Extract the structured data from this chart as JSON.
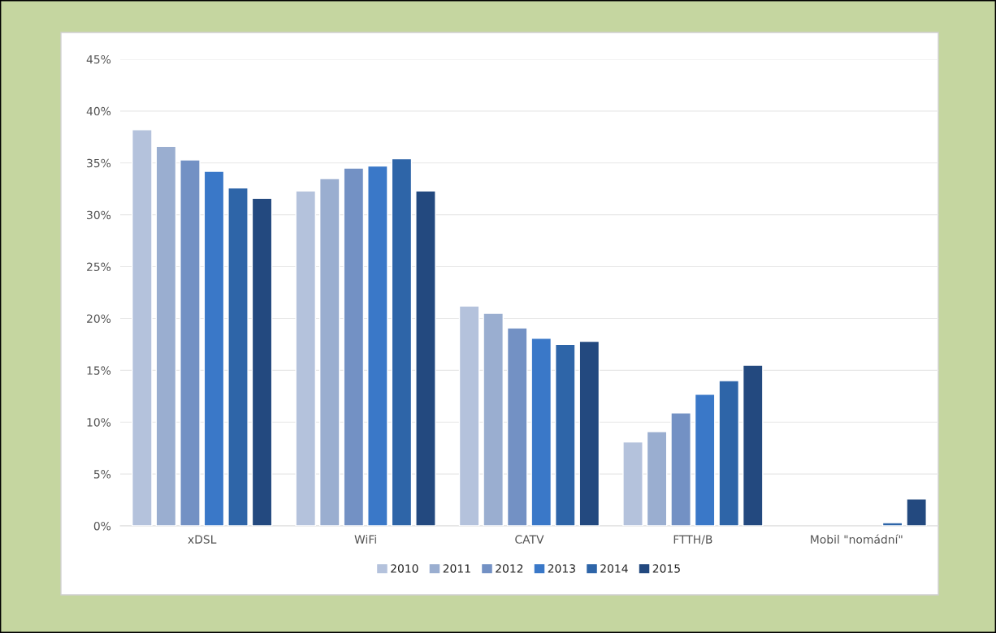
{
  "chart_data": {
    "type": "bar",
    "categories": [
      "xDSL",
      "WiFi",
      "CATV",
      "FTTH/B",
      "Mobil \"nomádní\""
    ],
    "series": [
      {
        "name": "2010",
        "color": "#b4c2dc",
        "values": [
          38.2,
          32.3,
          21.2,
          8.1,
          null
        ]
      },
      {
        "name": "2011",
        "color": "#9aaed0",
        "values": [
          36.6,
          33.5,
          20.5,
          9.1,
          null
        ]
      },
      {
        "name": "2012",
        "color": "#7391c4",
        "values": [
          35.3,
          34.5,
          19.1,
          10.9,
          null
        ]
      },
      {
        "name": "2013",
        "color": "#3a78c8",
        "values": [
          34.2,
          34.7,
          18.1,
          12.7,
          null
        ]
      },
      {
        "name": "2014",
        "color": "#2e65a8",
        "values": [
          32.6,
          35.4,
          17.5,
          14.0,
          0.3
        ]
      },
      {
        "name": "2015",
        "color": "#23497f",
        "values": [
          31.6,
          32.3,
          17.8,
          15.5,
          2.6
        ]
      }
    ],
    "ylim": [
      0,
      45
    ],
    "yticks": [
      {
        "value": 0,
        "label": "0%"
      },
      {
        "value": 5,
        "label": "5%"
      },
      {
        "value": 10,
        "label": "10%"
      },
      {
        "value": 15,
        "label": "15%"
      },
      {
        "value": 20,
        "label": "20%"
      },
      {
        "value": 25,
        "label": "25%"
      },
      {
        "value": 30,
        "label": "30%"
      },
      {
        "value": 35,
        "label": "35%"
      },
      {
        "value": 40,
        "label": "40%"
      },
      {
        "value": 45,
        "label": "45%"
      }
    ],
    "grid": "y",
    "legend": "bottom"
  }
}
